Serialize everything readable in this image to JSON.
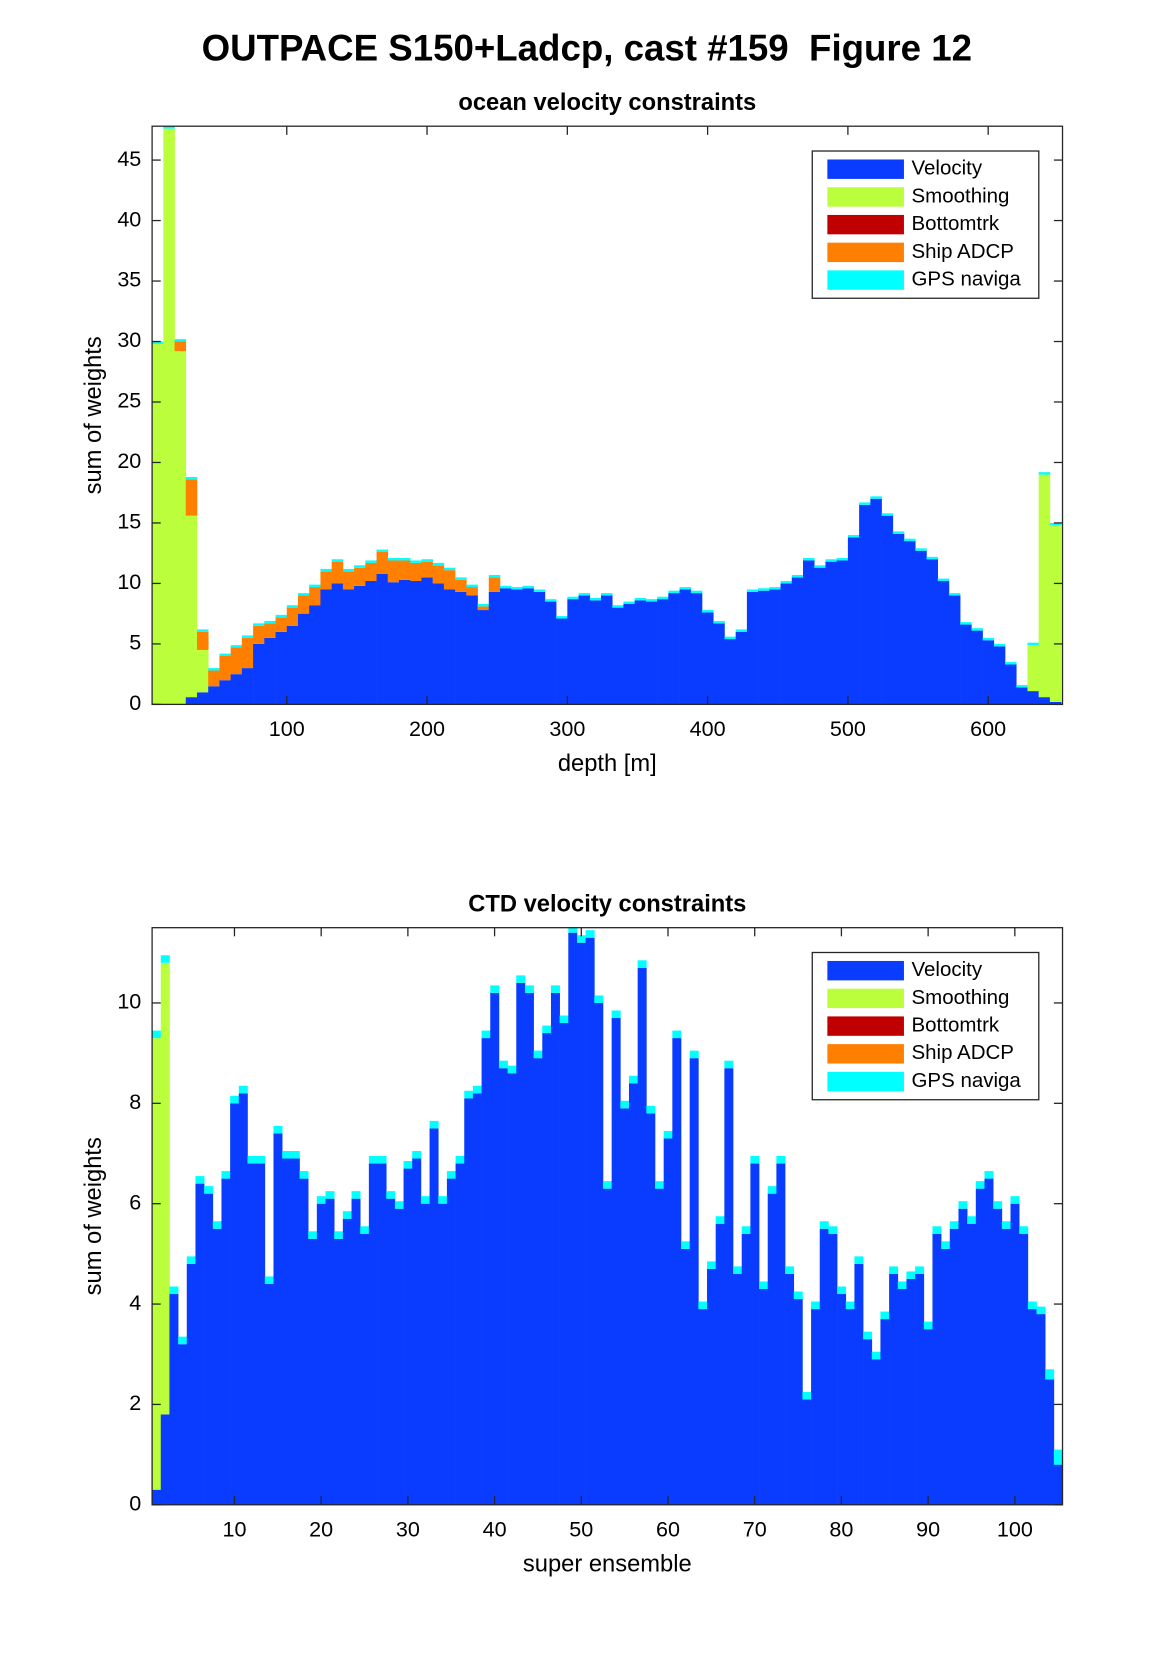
{
  "title": "OUTPACE S150+Ladcp, cast #159  Figure 12",
  "chart_data": [
    {
      "type": "bar",
      "stacked": true,
      "title": "ocean velocity constraints",
      "xlabel": "depth [m]",
      "ylabel": "sum of weights",
      "x": [
        8,
        16,
        24,
        32,
        40,
        48,
        56,
        64,
        72,
        80,
        88,
        96,
        104,
        112,
        120,
        128,
        136,
        144,
        152,
        160,
        168,
        176,
        184,
        192,
        200,
        208,
        216,
        224,
        232,
        240,
        248,
        256,
        264,
        272,
        280,
        288,
        296,
        304,
        312,
        320,
        328,
        336,
        344,
        352,
        360,
        368,
        376,
        384,
        392,
        400,
        408,
        416,
        424,
        432,
        440,
        448,
        456,
        464,
        472,
        480,
        488,
        496,
        504,
        512,
        520,
        528,
        536,
        544,
        552,
        560,
        568,
        576,
        584,
        592,
        600,
        608,
        616,
        624,
        632,
        640,
        648
      ],
      "series": [
        {
          "name": "Velocity",
          "color": "#0a3cff",
          "values": [
            0,
            0,
            0,
            0.6,
            1,
            1.5,
            2,
            2.5,
            3,
            5,
            5.5,
            6,
            6.5,
            7.5,
            8.2,
            9.5,
            10,
            9.5,
            9.8,
            10.2,
            10.8,
            10.1,
            10.3,
            10.2,
            10.5,
            10,
            9.5,
            9.3,
            9,
            7.8,
            9.3,
            9.6,
            9.5,
            9.6,
            9.3,
            8.5,
            7.1,
            8.7,
            9,
            8.6,
            9,
            8,
            8.3,
            8.6,
            8.5,
            8.7,
            9.2,
            9.5,
            9.2,
            7.6,
            6.7,
            5.4,
            6,
            9.3,
            9.4,
            9.5,
            10,
            10.5,
            11.9,
            11.3,
            11.8,
            11.9,
            13.8,
            16.5,
            17,
            15.6,
            14.1,
            13.5,
            12.7,
            12,
            10.2,
            9,
            6.6,
            6.1,
            5.3,
            4.8,
            3.3,
            1.4,
            1.1,
            0.6,
            0.2
          ]
        },
        {
          "name": "Smoothing",
          "color": "#bbff3c",
          "values": [
            29.8,
            47.6,
            29.2,
            15,
            3.5,
            0,
            0,
            0,
            0,
            0,
            0,
            0,
            0,
            0,
            0,
            0,
            0,
            0,
            0,
            0,
            0,
            0,
            0,
            0,
            0,
            0,
            0,
            0,
            0,
            0,
            0,
            0,
            0,
            0,
            0,
            0,
            0,
            0,
            0,
            0,
            0,
            0,
            0,
            0,
            0,
            0,
            0,
            0,
            0,
            0,
            0,
            0,
            0,
            0,
            0,
            0,
            0,
            0,
            0,
            0,
            0,
            0,
            0,
            0,
            0,
            0,
            0,
            0,
            0,
            0,
            0,
            0,
            0,
            0,
            0,
            0,
            0,
            0,
            3.8,
            18.4,
            14.6
          ]
        },
        {
          "name": "Bottomtrk",
          "color": "#c00000",
          "values": [
            0,
            0,
            0,
            0,
            0,
            0,
            0,
            0,
            0,
            0,
            0,
            0,
            0,
            0,
            0,
            0,
            0,
            0,
            0,
            0,
            0,
            0,
            0,
            0,
            0,
            0,
            0,
            0,
            0,
            0,
            0,
            0,
            0,
            0,
            0,
            0,
            0,
            0,
            0,
            0,
            0,
            0,
            0,
            0,
            0,
            0,
            0,
            0,
            0,
            0,
            0,
            0,
            0,
            0,
            0,
            0,
            0,
            0,
            0,
            0,
            0,
            0,
            0,
            0,
            0,
            0,
            0,
            0,
            0,
            0,
            0,
            0,
            0,
            0,
            0,
            0,
            0,
            0,
            0,
            0,
            0
          ]
        },
        {
          "name": "Ship ADCP",
          "color": "#ff8000",
          "values": [
            0,
            0,
            0.8,
            3,
            1.5,
            1.3,
            2,
            2.2,
            2.5,
            1.5,
            1.2,
            1.2,
            1.5,
            1.5,
            1.5,
            1.5,
            1.8,
            1.5,
            1.5,
            1.5,
            1.8,
            1.8,
            1.6,
            1.5,
            1.3,
            1.5,
            1.6,
            1,
            0.7,
            0.3,
            1.2,
            0,
            0,
            0,
            0,
            0,
            0,
            0,
            0,
            0,
            0,
            0,
            0,
            0,
            0,
            0,
            0,
            0,
            0,
            0,
            0,
            0,
            0,
            0,
            0,
            0,
            0,
            0,
            0,
            0,
            0,
            0,
            0,
            0,
            0,
            0,
            0,
            0,
            0,
            0,
            0,
            0,
            0,
            0,
            0,
            0,
            0,
            0,
            0,
            0,
            0
          ]
        },
        {
          "name": "GPS naviga",
          "color": "#00ffff",
          "values": [
            0.2,
            0.2,
            0.2,
            0.2,
            0.2,
            0.2,
            0.2,
            0.2,
            0.2,
            0.2,
            0.2,
            0.2,
            0.2,
            0.2,
            0.2,
            0.2,
            0.2,
            0.2,
            0.2,
            0.2,
            0.2,
            0.2,
            0.2,
            0.2,
            0.2,
            0.2,
            0.2,
            0.2,
            0.2,
            0.2,
            0.2,
            0.2,
            0.2,
            0.2,
            0.2,
            0.2,
            0.2,
            0.2,
            0.2,
            0.2,
            0.2,
            0.2,
            0.2,
            0.2,
            0.2,
            0.2,
            0.2,
            0.2,
            0.2,
            0.2,
            0.2,
            0.2,
            0.2,
            0.2,
            0.2,
            0.2,
            0.2,
            0.2,
            0.2,
            0.2,
            0.2,
            0.2,
            0.2,
            0.2,
            0.2,
            0.2,
            0.2,
            0.2,
            0.2,
            0.2,
            0.2,
            0.2,
            0.2,
            0.2,
            0.2,
            0.2,
            0.2,
            0.2,
            0.2,
            0.2,
            0.2
          ]
        }
      ],
      "xlim": [
        4,
        653
      ],
      "ylim": [
        0,
        47.8
      ],
      "xticks": [
        100,
        200,
        300,
        400,
        500,
        600
      ],
      "yticks": [
        0,
        5,
        10,
        15,
        20,
        25,
        30,
        35,
        40,
        45
      ],
      "legend": "northeast"
    },
    {
      "type": "bar",
      "stacked": true,
      "title": "CTD velocity constraints",
      "xlabel": "super ensemble",
      "ylabel": "sum of weights",
      "x": [
        1,
        2,
        3,
        4,
        5,
        6,
        7,
        8,
        9,
        10,
        11,
        12,
        13,
        14,
        15,
        16,
        17,
        18,
        19,
        20,
        21,
        22,
        23,
        24,
        25,
        26,
        27,
        28,
        29,
        30,
        31,
        32,
        33,
        34,
        35,
        36,
        37,
        38,
        39,
        40,
        41,
        42,
        43,
        44,
        45,
        46,
        47,
        48,
        49,
        50,
        51,
        52,
        53,
        54,
        55,
        56,
        57,
        58,
        59,
        60,
        61,
        62,
        63,
        64,
        65,
        66,
        67,
        68,
        69,
        70,
        71,
        72,
        73,
        74,
        75,
        76,
        77,
        78,
        79,
        80,
        81,
        82,
        83,
        84,
        85,
        86,
        87,
        88,
        89,
        90,
        91,
        92,
        93,
        94,
        95,
        96,
        97,
        98,
        99,
        100,
        101,
        102,
        103,
        104,
        105
      ],
      "series": [
        {
          "name": "Velocity",
          "color": "#0a3cff",
          "values": [
            0.3,
            1.8,
            4.2,
            3.2,
            4.8,
            6.4,
            6.2,
            5.5,
            6.5,
            8.0,
            8.2,
            6.8,
            6.8,
            4.4,
            7.4,
            6.9,
            6.9,
            6.5,
            5.3,
            6.0,
            6.1,
            5.3,
            5.7,
            6.1,
            5.4,
            6.8,
            6.8,
            6.1,
            5.9,
            6.7,
            6.9,
            6.0,
            7.5,
            6.0,
            6.5,
            6.8,
            8.1,
            8.2,
            9.3,
            10.2,
            8.7,
            8.6,
            10.4,
            10.2,
            8.9,
            9.4,
            10.2,
            9.6,
            11.4,
            11.2,
            11.3,
            10.0,
            6.3,
            9.7,
            7.9,
            8.4,
            10.7,
            7.8,
            6.3,
            7.3,
            9.3,
            5.1,
            8.9,
            3.9,
            4.7,
            5.6,
            8.7,
            4.6,
            5.4,
            6.8,
            4.3,
            6.2,
            6.8,
            4.6,
            4.1,
            2.1,
            3.9,
            5.5,
            5.4,
            4.2,
            3.9,
            4.8,
            3.3,
            2.9,
            3.7,
            4.6,
            4.3,
            4.5,
            4.6,
            3.5,
            5.4,
            5.1,
            5.5,
            5.9,
            5.6,
            6.3,
            6.5,
            5.9,
            5.5,
            6.0,
            5.4,
            3.9,
            3.8,
            2.5,
            0.8
          ]
        },
        {
          "name": "Smoothing",
          "color": "#bbff3c",
          "values": [
            9.0,
            9.0,
            0,
            0,
            0,
            0,
            0,
            0,
            0,
            0,
            0,
            0,
            0,
            0,
            0,
            0,
            0,
            0,
            0,
            0,
            0,
            0,
            0,
            0,
            0,
            0,
            0,
            0,
            0,
            0,
            0,
            0,
            0,
            0,
            0,
            0,
            0,
            0,
            0,
            0,
            0,
            0,
            0,
            0,
            0,
            0,
            0,
            0,
            0,
            0,
            0,
            0,
            0,
            0,
            0,
            0,
            0,
            0,
            0,
            0,
            0,
            0,
            0,
            0,
            0,
            0,
            0,
            0,
            0,
            0,
            0,
            0,
            0,
            0,
            0,
            0,
            0,
            0,
            0,
            0,
            0,
            0,
            0,
            0,
            0,
            0,
            0,
            0,
            0,
            0,
            0,
            0,
            0,
            0,
            0,
            0,
            0,
            0,
            0,
            0,
            0,
            0,
            0,
            0,
            0
          ]
        },
        {
          "name": "Bottomtrk",
          "color": "#c00000",
          "values": [
            0,
            0,
            0,
            0,
            0,
            0,
            0,
            0,
            0,
            0,
            0,
            0,
            0,
            0,
            0,
            0,
            0,
            0,
            0,
            0,
            0,
            0,
            0,
            0,
            0,
            0,
            0,
            0,
            0,
            0,
            0,
            0,
            0,
            0,
            0,
            0,
            0,
            0,
            0,
            0,
            0,
            0,
            0,
            0,
            0,
            0,
            0,
            0,
            0,
            0,
            0,
            0,
            0,
            0,
            0,
            0,
            0,
            0,
            0,
            0,
            0,
            0,
            0,
            0,
            0,
            0,
            0,
            0,
            0,
            0,
            0,
            0,
            0,
            0,
            0,
            0,
            0,
            0,
            0,
            0,
            0,
            0,
            0,
            0,
            0,
            0,
            0,
            0,
            0,
            0,
            0,
            0,
            0,
            0,
            0,
            0,
            0,
            0,
            0,
            0,
            0,
            0,
            0,
            0,
            0
          ]
        },
        {
          "name": "Ship ADCP",
          "color": "#ff8000",
          "values": [
            0,
            0,
            0,
            0,
            0,
            0,
            0,
            0,
            0,
            0,
            0,
            0,
            0,
            0,
            0,
            0,
            0,
            0,
            0,
            0,
            0,
            0,
            0,
            0,
            0,
            0,
            0,
            0,
            0,
            0,
            0,
            0,
            0,
            0,
            0,
            0,
            0,
            0,
            0,
            0,
            0,
            0,
            0,
            0,
            0,
            0,
            0,
            0,
            0,
            0,
            0,
            0,
            0,
            0,
            0,
            0,
            0,
            0,
            0,
            0,
            0,
            0,
            0,
            0,
            0,
            0,
            0,
            0,
            0,
            0,
            0,
            0,
            0,
            0,
            0,
            0,
            0,
            0,
            0,
            0,
            0,
            0,
            0,
            0,
            0,
            0,
            0,
            0,
            0,
            0,
            0,
            0,
            0,
            0,
            0,
            0,
            0,
            0,
            0,
            0,
            0,
            0,
            0,
            0,
            0
          ]
        },
        {
          "name": "GPS naviga",
          "color": "#00ffff",
          "values": [
            0.15,
            0.15,
            0.15,
            0.15,
            0.15,
            0.15,
            0.15,
            0.15,
            0.15,
            0.15,
            0.15,
            0.15,
            0.15,
            0.15,
            0.15,
            0.15,
            0.15,
            0.15,
            0.15,
            0.15,
            0.15,
            0.15,
            0.15,
            0.15,
            0.15,
            0.15,
            0.15,
            0.15,
            0.15,
            0.15,
            0.15,
            0.15,
            0.15,
            0.15,
            0.15,
            0.15,
            0.15,
            0.15,
            0.15,
            0.15,
            0.15,
            0.15,
            0.15,
            0.15,
            0.15,
            0.15,
            0.15,
            0.15,
            0.15,
            0.15,
            0.15,
            0.15,
            0.15,
            0.15,
            0.15,
            0.15,
            0.15,
            0.15,
            0.15,
            0.15,
            0.15,
            0.15,
            0.15,
            0.15,
            0.15,
            0.15,
            0.15,
            0.15,
            0.15,
            0.15,
            0.15,
            0.15,
            0.15,
            0.15,
            0.15,
            0.15,
            0.15,
            0.15,
            0.15,
            0.15,
            0.15,
            0.15,
            0.15,
            0.15,
            0.15,
            0.15,
            0.15,
            0.15,
            0.15,
            0.15,
            0.15,
            0.15,
            0.15,
            0.15,
            0.15,
            0.15,
            0.15,
            0.15,
            0.15,
            0.15,
            0.15,
            0.15,
            0.15,
            0.2,
            0.3
          ]
        }
      ],
      "xlim": [
        0.5,
        105.5
      ],
      "ylim": [
        0,
        11.5
      ],
      "xticks": [
        10,
        20,
        30,
        40,
        50,
        60,
        70,
        80,
        90,
        100
      ],
      "yticks": [
        0,
        2,
        4,
        6,
        8,
        10
      ],
      "legend": "northeast"
    }
  ]
}
